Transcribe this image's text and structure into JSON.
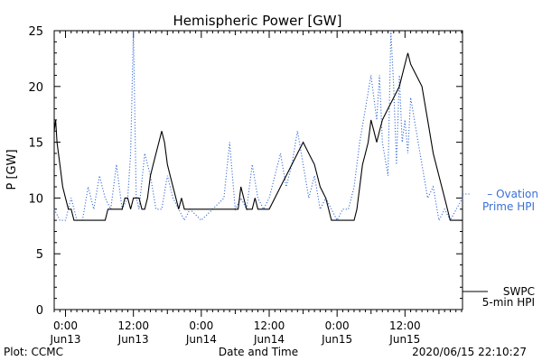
{
  "colors": {
    "swpc": "#000000",
    "ovation": "#3a6fd8",
    "axis": "#000000",
    "background": "#ffffff"
  },
  "footer": {
    "left": "Plot: CCMC",
    "center": "Date and Time",
    "right": "2020/06/15 22:10:27"
  },
  "chart_data": {
    "type": "line",
    "title": "Hemispheric Power [GW]",
    "xlabel": "Date and Time",
    "ylabel": "P [GW]",
    "ylim": [
      0,
      25
    ],
    "xlim": [
      "2020-06-12T22:00",
      "2020-06-15T22:10"
    ],
    "yticks": [
      0,
      5,
      10,
      15,
      20,
      25
    ],
    "yticklabels": [
      "0",
      "5",
      "10",
      "15",
      "20",
      "25"
    ],
    "xticks": [
      {
        "t": "2020-06-13T00:00",
        "time": "0:00",
        "date": "Jun13"
      },
      {
        "t": "2020-06-13T12:00",
        "time": "12:00",
        "date": "Jun13"
      },
      {
        "t": "2020-06-14T00:00",
        "time": "0:00",
        "date": "Jun14"
      },
      {
        "t": "2020-06-14T12:00",
        "time": "12:00",
        "date": "Jun14"
      },
      {
        "t": "2020-06-15T00:00",
        "time": "0:00",
        "date": "Jun15"
      },
      {
        "t": "2020-06-15T12:00",
        "time": "12:00",
        "date": "Jun15"
      }
    ],
    "grid": false,
    "legend": "right",
    "series": [
      {
        "name": "SWPC 5-min HPI",
        "style": "solid",
        "color": "#000000",
        "legend_label_lines": [
          "SWPC",
          "5-min HPI"
        ],
        "points": [
          [
            "2020-06-12T22:00",
            16
          ],
          [
            "2020-06-12T22:15",
            17
          ],
          [
            "2020-06-12T22:30",
            15
          ],
          [
            "2020-06-12T23:00",
            13
          ],
          [
            "2020-06-12T23:30",
            11
          ],
          [
            "2020-06-13T00:00",
            10
          ],
          [
            "2020-06-13T00:30",
            9
          ],
          [
            "2020-06-13T01:00",
            9
          ],
          [
            "2020-06-13T01:30",
            8
          ],
          [
            "2020-06-13T07:00",
            8
          ],
          [
            "2020-06-13T07:30",
            9
          ],
          [
            "2020-06-13T09:00",
            9
          ],
          [
            "2020-06-13T10:00",
            9
          ],
          [
            "2020-06-13T10:30",
            10
          ],
          [
            "2020-06-13T11:00",
            10
          ],
          [
            "2020-06-13T11:30",
            9
          ],
          [
            "2020-06-13T12:00",
            10
          ],
          [
            "2020-06-13T13:00",
            10
          ],
          [
            "2020-06-13T13:30",
            9
          ],
          [
            "2020-06-13T14:00",
            9
          ],
          [
            "2020-06-13T14:30",
            10
          ],
          [
            "2020-06-13T15:00",
            12
          ],
          [
            "2020-06-13T15:30",
            13
          ],
          [
            "2020-06-13T16:00",
            14
          ],
          [
            "2020-06-13T16:30",
            15
          ],
          [
            "2020-06-13T17:00",
            16
          ],
          [
            "2020-06-13T17:30",
            15
          ],
          [
            "2020-06-13T18:00",
            13
          ],
          [
            "2020-06-13T18:30",
            12
          ],
          [
            "2020-06-13T19:00",
            11
          ],
          [
            "2020-06-13T19:30",
            10
          ],
          [
            "2020-06-13T20:00",
            9
          ],
          [
            "2020-06-13T20:30",
            10
          ],
          [
            "2020-06-13T21:00",
            9
          ],
          [
            "2020-06-13T22:00",
            9
          ],
          [
            "2020-06-14T06:30",
            9
          ],
          [
            "2020-06-14T07:00",
            11
          ],
          [
            "2020-06-14T07:30",
            10
          ],
          [
            "2020-06-14T08:00",
            9
          ],
          [
            "2020-06-14T09:00",
            9
          ],
          [
            "2020-06-14T09:30",
            10
          ],
          [
            "2020-06-14T10:00",
            9
          ],
          [
            "2020-06-14T12:00",
            9
          ],
          [
            "2020-06-14T13:00",
            10
          ],
          [
            "2020-06-14T14:00",
            11
          ],
          [
            "2020-06-14T15:00",
            12
          ],
          [
            "2020-06-14T16:00",
            13
          ],
          [
            "2020-06-14T17:00",
            14
          ],
          [
            "2020-06-14T18:00",
            15
          ],
          [
            "2020-06-14T19:00",
            14
          ],
          [
            "2020-06-14T20:00",
            13
          ],
          [
            "2020-06-14T21:00",
            11
          ],
          [
            "2020-06-14T22:00",
            10
          ],
          [
            "2020-06-14T22:30",
            9
          ],
          [
            "2020-06-14T23:00",
            8
          ],
          [
            "2020-06-15T03:00",
            8
          ],
          [
            "2020-06-15T03:30",
            9
          ],
          [
            "2020-06-15T04:00",
            11
          ],
          [
            "2020-06-15T04:30",
            13
          ],
          [
            "2020-06-15T05:00",
            14
          ],
          [
            "2020-06-15T05:30",
            15
          ],
          [
            "2020-06-15T06:00",
            17
          ],
          [
            "2020-06-15T06:30",
            16
          ],
          [
            "2020-06-15T07:00",
            15
          ],
          [
            "2020-06-15T07:30",
            16
          ],
          [
            "2020-06-15T08:00",
            17
          ],
          [
            "2020-06-15T09:00",
            18
          ],
          [
            "2020-06-15T10:00",
            19
          ],
          [
            "2020-06-15T11:00",
            20
          ],
          [
            "2020-06-15T12:00",
            22
          ],
          [
            "2020-06-15T12:30",
            23
          ],
          [
            "2020-06-15T13:00",
            22
          ],
          [
            "2020-06-15T14:00",
            21
          ],
          [
            "2020-06-15T15:00",
            20
          ],
          [
            "2020-06-15T16:00",
            17
          ],
          [
            "2020-06-15T17:00",
            14
          ],
          [
            "2020-06-15T18:00",
            12
          ],
          [
            "2020-06-15T19:00",
            10
          ],
          [
            "2020-06-15T20:00",
            8
          ],
          [
            "2020-06-15T22:10",
            8
          ]
        ]
      },
      {
        "name": "Ovation Prime HPI",
        "style": "dotted",
        "color": "#3a6fd8",
        "legend_label_lines": [
          "– Ovation",
          "Prime HPI"
        ],
        "points": [
          [
            "2020-06-12T22:00",
            9
          ],
          [
            "2020-06-12T23:00",
            8
          ],
          [
            "2020-06-13T00:00",
            8
          ],
          [
            "2020-06-13T01:00",
            10
          ],
          [
            "2020-06-13T02:00",
            8
          ],
          [
            "2020-06-13T03:00",
            8
          ],
          [
            "2020-06-13T04:00",
            11
          ],
          [
            "2020-06-13T05:00",
            9
          ],
          [
            "2020-06-13T06:00",
            12
          ],
          [
            "2020-06-13T07:00",
            10
          ],
          [
            "2020-06-13T08:00",
            9
          ],
          [
            "2020-06-13T09:00",
            13
          ],
          [
            "2020-06-13T10:00",
            9
          ],
          [
            "2020-06-13T11:00",
            10
          ],
          [
            "2020-06-13T11:30",
            14
          ],
          [
            "2020-06-13T12:00",
            25
          ],
          [
            "2020-06-13T12:30",
            10
          ],
          [
            "2020-06-13T13:00",
            9
          ],
          [
            "2020-06-13T14:00",
            14
          ],
          [
            "2020-06-13T15:00",
            12
          ],
          [
            "2020-06-13T16:00",
            9
          ],
          [
            "2020-06-13T17:00",
            9
          ],
          [
            "2020-06-13T18:00",
            12
          ],
          [
            "2020-06-13T19:00",
            10
          ],
          [
            "2020-06-13T20:00",
            9
          ],
          [
            "2020-06-13T21:00",
            8
          ],
          [
            "2020-06-13T22:00",
            9
          ],
          [
            "2020-06-14T00:00",
            8
          ],
          [
            "2020-06-14T02:00",
            9
          ],
          [
            "2020-06-14T04:00",
            10
          ],
          [
            "2020-06-14T05:00",
            15
          ],
          [
            "2020-06-14T06:00",
            9
          ],
          [
            "2020-06-14T07:00",
            10
          ],
          [
            "2020-06-14T08:00",
            9
          ],
          [
            "2020-06-14T09:00",
            13
          ],
          [
            "2020-06-14T10:00",
            10
          ],
          [
            "2020-06-14T11:00",
            9
          ],
          [
            "2020-06-14T12:00",
            10
          ],
          [
            "2020-06-14T13:00",
            12
          ],
          [
            "2020-06-14T14:00",
            14
          ],
          [
            "2020-06-14T15:00",
            11
          ],
          [
            "2020-06-14T16:00",
            13
          ],
          [
            "2020-06-14T17:00",
            16
          ],
          [
            "2020-06-14T18:00",
            13
          ],
          [
            "2020-06-14T19:00",
            10
          ],
          [
            "2020-06-14T20:00",
            12
          ],
          [
            "2020-06-14T21:00",
            9
          ],
          [
            "2020-06-14T22:00",
            10
          ],
          [
            "2020-06-14T23:00",
            9
          ],
          [
            "2020-06-15T00:00",
            8
          ],
          [
            "2020-06-15T01:00",
            9
          ],
          [
            "2020-06-15T02:00",
            9
          ],
          [
            "2020-06-15T03:00",
            11
          ],
          [
            "2020-06-15T04:00",
            15
          ],
          [
            "2020-06-15T05:00",
            18
          ],
          [
            "2020-06-15T06:00",
            21
          ],
          [
            "2020-06-15T07:00",
            17
          ],
          [
            "2020-06-15T07:30",
            21
          ],
          [
            "2020-06-15T08:00",
            15
          ],
          [
            "2020-06-15T09:00",
            12
          ],
          [
            "2020-06-15T09:30",
            25
          ],
          [
            "2020-06-15T10:00",
            20
          ],
          [
            "2020-06-15T10:30",
            13
          ],
          [
            "2020-06-15T11:00",
            21
          ],
          [
            "2020-06-15T11:30",
            15
          ],
          [
            "2020-06-15T12:00",
            17
          ],
          [
            "2020-06-15T12:30",
            14
          ],
          [
            "2020-06-15T13:00",
            19
          ],
          [
            "2020-06-15T14:00",
            16
          ],
          [
            "2020-06-15T15:00",
            13
          ],
          [
            "2020-06-15T16:00",
            10
          ],
          [
            "2020-06-15T17:00",
            11
          ],
          [
            "2020-06-15T18:00",
            8
          ],
          [
            "2020-06-15T19:00",
            9
          ],
          [
            "2020-06-15T20:00",
            8
          ],
          [
            "2020-06-15T22:10",
            10
          ]
        ]
      }
    ]
  }
}
